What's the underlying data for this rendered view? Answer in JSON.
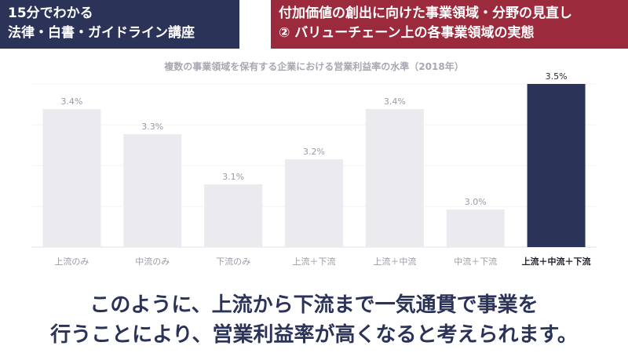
{
  "header": {
    "left_line1": "15分でわかる",
    "left_line2": "法律・白書・ガイドライン講座",
    "right_line1": "付加価値の創出に向けた事業領域・分野の見直し",
    "right_line2": "② バリューチェーン上の各事業領域の実態"
  },
  "chart_data": {
    "type": "bar",
    "title": "複数の事業領域を保有する企業における営業利益率の水準（2018年）",
    "categories": [
      "上流のみ",
      "中流のみ",
      "下流のみ",
      "上流＋下流",
      "上流＋中流",
      "中流＋下流",
      "上流＋中流＋下流"
    ],
    "values": [
      3.4,
      3.3,
      3.1,
      3.2,
      3.4,
      3.0,
      3.5
    ],
    "value_labels": [
      "3.4%",
      "3.3%",
      "3.1%",
      "3.2%",
      "3.4%",
      "3.0%",
      "3.5%"
    ],
    "highlight_index": 6,
    "colors": {
      "bar": "#ebebef",
      "highlight": "#2b3359",
      "label": "#9a9aa6"
    },
    "grid": true
  },
  "caption": {
    "line1": "このように、上流から下流まで一気通貫で事業を",
    "line2": "行うことにより、営業利益率が高くなると考えられます。"
  }
}
